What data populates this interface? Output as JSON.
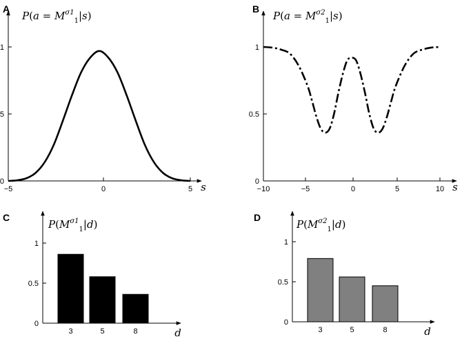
{
  "chart_data": [
    {
      "panel": "A",
      "type": "line",
      "ylabel": "P(a = M1^σ1 | s)",
      "xlabel": "s",
      "xlim": [
        -5,
        5
      ],
      "ylim": [
        0,
        1
      ],
      "xticks": [
        "−5",
        "0",
        "5"
      ],
      "yticks": [
        "0",
        "0.5",
        "1"
      ],
      "line_style": "solid",
      "color": "#000000",
      "x": [
        -5,
        -4.5,
        -4,
        -3.5,
        -3,
        -2.5,
        -2,
        -1.5,
        -1,
        -0.5,
        0,
        0.5,
        1,
        1.5,
        2,
        2.5,
        3,
        3.5,
        4,
        4.5,
        5
      ],
      "y": [
        0.0,
        0.005,
        0.02,
        0.06,
        0.14,
        0.27,
        0.45,
        0.64,
        0.81,
        0.92,
        0.97,
        0.92,
        0.81,
        0.64,
        0.45,
        0.27,
        0.14,
        0.06,
        0.02,
        0.005,
        0.0
      ]
    },
    {
      "panel": "B",
      "type": "line",
      "ylabel": "P(a = M1^σ2 | s)",
      "xlabel": "s",
      "xlim": [
        -10,
        10
      ],
      "ylim": [
        0,
        1
      ],
      "xticks": [
        "−10",
        "−5",
        "0",
        "5",
        "10"
      ],
      "yticks": [
        "0",
        "0.5",
        "1"
      ],
      "line_style": "dash-dot",
      "color": "#000000",
      "x": [
        -10,
        -9,
        -8,
        -7,
        -6,
        -5,
        -4.5,
        -4,
        -3.5,
        -3,
        -2.5,
        -2,
        -1.5,
        -1,
        -0.5,
        0,
        0.5,
        1,
        1.5,
        2,
        2.5,
        3,
        3.5,
        4,
        4.5,
        5,
        6,
        7,
        8,
        9,
        10
      ],
      "y": [
        1.0,
        0.995,
        0.98,
        0.95,
        0.86,
        0.71,
        0.6,
        0.48,
        0.39,
        0.36,
        0.39,
        0.5,
        0.66,
        0.8,
        0.9,
        0.92,
        0.9,
        0.8,
        0.66,
        0.5,
        0.39,
        0.36,
        0.39,
        0.48,
        0.6,
        0.71,
        0.86,
        0.95,
        0.98,
        0.995,
        1.0
      ]
    },
    {
      "panel": "C",
      "type": "bar",
      "ylabel": "P(M1^σ1 | d)",
      "xlabel": "d",
      "categories": [
        "3",
        "5",
        "8"
      ],
      "values": [
        0.86,
        0.58,
        0.36
      ],
      "ylim": [
        0,
        1
      ],
      "yticks": [
        "0",
        "0.5",
        "1"
      ],
      "color": "#000000"
    },
    {
      "panel": "D",
      "type": "bar",
      "ylabel": "P(M1^σ2 | d)",
      "xlabel": "d",
      "categories": [
        "3",
        "5",
        "8"
      ],
      "values": [
        0.79,
        0.56,
        0.45
      ],
      "ylim": [
        0,
        1
      ],
      "yticks": [
        "0",
        "0.5",
        "1"
      ],
      "color": "#808080"
    }
  ]
}
